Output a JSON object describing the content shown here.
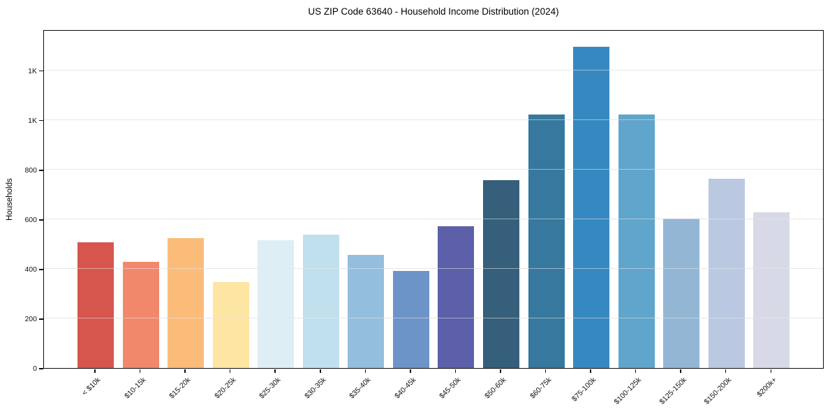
{
  "figure": {
    "title": "US ZIP Code 63640 - Household Income Distribution (2024)",
    "background": "#ffffff"
  },
  "chart_data": {
    "type": "bar",
    "title": "US ZIP Code 63640 - Household Income Distribution (2024)",
    "xlabel": "",
    "ylabel": "Households",
    "legend_position": "none",
    "grid": "horizontal",
    "grid_color": "#e7e7e7",
    "axis_color": "#0d0d0d",
    "ylim": [
      0,
      1365
    ],
    "yticks": [
      {
        "value": 0,
        "label": "0"
      },
      {
        "value": 200,
        "label": "200"
      },
      {
        "value": 400,
        "label": "400"
      },
      {
        "value": 600,
        "label": "600"
      },
      {
        "value": 800,
        "label": "800"
      },
      {
        "value": 1000,
        "label": "1K"
      },
      {
        "value": 1200,
        "label": "1K"
      }
    ],
    "categories": [
      "< $10k",
      "$10-15k",
      "$15-20k",
      "$20-25k",
      "$25-30k",
      "$30-35k",
      "$35-40k",
      "$40-45k",
      "$45-50k",
      "$50-60k",
      "$60-75k",
      "$75-100k",
      "$100-125k",
      "$125-150k",
      "$150-200k",
      "$200k+"
    ],
    "values": [
      507,
      428,
      524,
      346,
      515,
      538,
      456,
      391,
      571,
      757,
      1022,
      1295,
      1022,
      603,
      763,
      628
    ],
    "bar_colors": [
      "#d6564e",
      "#f1886b",
      "#fbbc7a",
      "#fde5a2",
      "#ddeef5",
      "#bfe0ec",
      "#93bedd",
      "#6d94c7",
      "#5c60a9",
      "#355f7a",
      "#36789e",
      "#3689c0",
      "#60a5cb",
      "#93b6d5",
      "#bac9e1",
      "#d7d9e6"
    ]
  }
}
